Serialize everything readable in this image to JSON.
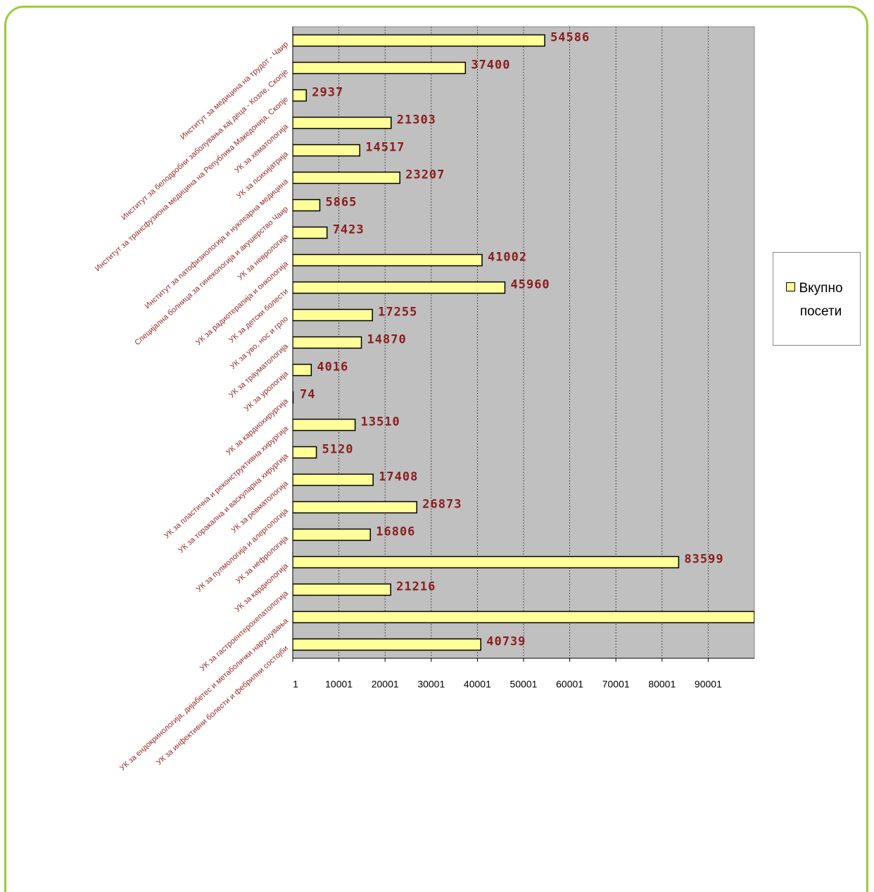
{
  "chart_data": {
    "type": "hbar",
    "categories": [
      "Институт за медицина на трудот - Чаир",
      "Институт за белодробни заболувања кај деца - Козле, Скопје",
      "Институт за трансфузиона медицина на Република Македонија, Скопје",
      "УК за хематологија",
      "УК за психијатрија",
      "Институт за патофизиологија и нуклеарна медицина",
      "Специјална болница за гинекологија и акушерство Чаир",
      "УК за неврологија",
      "УК за радиотерапија и онкологија",
      "УК за детски болести",
      "УК за уво, нос и грло",
      "УК за трауматологија",
      "УК за урологија",
      "УК за кардиохирургија",
      "УК за пластична и реконструктивна хирургија",
      "УК за торакална и васкуларна хирургија",
      "УК за ревматологија",
      "УК за пулмологија и алергологија",
      "УК за нефрологија",
      "УК за кардиологија",
      "УК за гастроентерохепатологија",
      "УК за ендокринологија, дијабетес и метаболички нарушувања",
      "УК за инфективни болести и фебрилни состојби"
    ],
    "series": [
      {
        "name": "Вкупно посети",
        "color": "#ffff99",
        "values": [
          54586,
          37400,
          2937,
          21303,
          14517,
          23207,
          5865,
          7423,
          41002,
          45960,
          17255,
          14870,
          4016,
          74,
          13510,
          5120,
          17408,
          26873,
          16806,
          83599,
          21216,
          100001,
          40739
        ],
        "show_value_labels": [
          true,
          true,
          true,
          true,
          true,
          true,
          true,
          true,
          true,
          true,
          true,
          true,
          true,
          true,
          true,
          true,
          true,
          true,
          true,
          true,
          true,
          false,
          true
        ]
      }
    ],
    "xlim": [
      1,
      100001
    ],
    "xticks": [
      1,
      10001,
      20001,
      30001,
      40001,
      50001,
      60001,
      70001,
      80001,
      90001
    ],
    "grid": true,
    "legend": "right"
  }
}
